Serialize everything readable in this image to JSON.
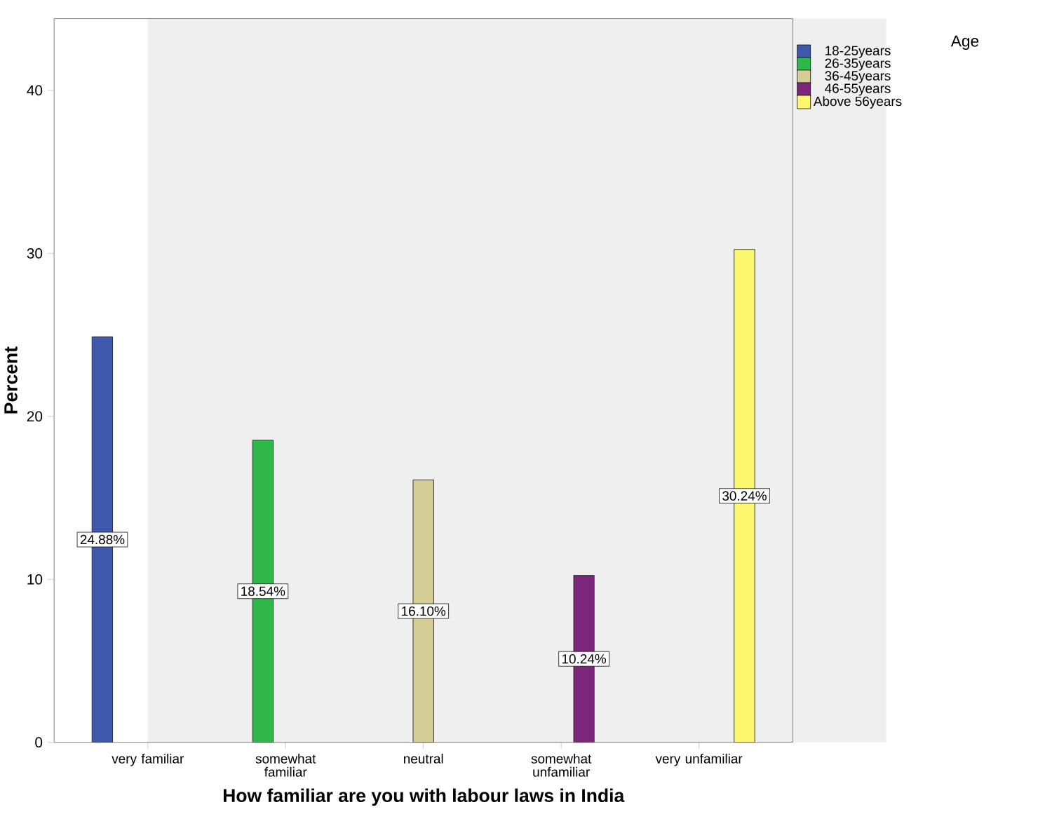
{
  "chart_data": {
    "type": "bar",
    "xlabel": "How familiar are you with labour laws in India",
    "ylabel": "Percent",
    "legend_title": "Age",
    "categories": [
      "very familiar",
      "somewhat familiar",
      "neutral",
      "somewhat unfamiliar",
      "very unfamiliar"
    ],
    "series": [
      {
        "name": "18-25years",
        "color": "#3e58ac",
        "values": [
          24.88,
          null,
          null,
          null,
          null
        ],
        "value_labels": [
          "24.88%",
          null,
          null,
          null,
          null
        ]
      },
      {
        "name": "26-35years",
        "color": "#2eb849",
        "values": [
          null,
          18.54,
          null,
          null,
          null
        ],
        "value_labels": [
          null,
          "18.54%",
          null,
          null,
          null
        ]
      },
      {
        "name": "36-45years",
        "color": "#d4ce96",
        "values": [
          null,
          null,
          16.1,
          null,
          null
        ],
        "value_labels": [
          null,
          null,
          "16.10%",
          null,
          null
        ]
      },
      {
        "name": "46-55years",
        "color": "#7c2679",
        "values": [
          null,
          null,
          null,
          10.24,
          null
        ],
        "value_labels": [
          null,
          null,
          null,
          "10.24%",
          null
        ]
      },
      {
        "name": "Above 56years",
        "color": "#fbf870",
        "values": [
          null,
          null,
          null,
          null,
          30.24
        ],
        "value_labels": [
          null,
          null,
          null,
          null,
          "30.24%"
        ]
      }
    ],
    "ylim": [
      0,
      44.4
    ],
    "yticks": [
      0,
      10,
      20,
      30,
      40
    ],
    "grid": false,
    "legend": "top right"
  }
}
